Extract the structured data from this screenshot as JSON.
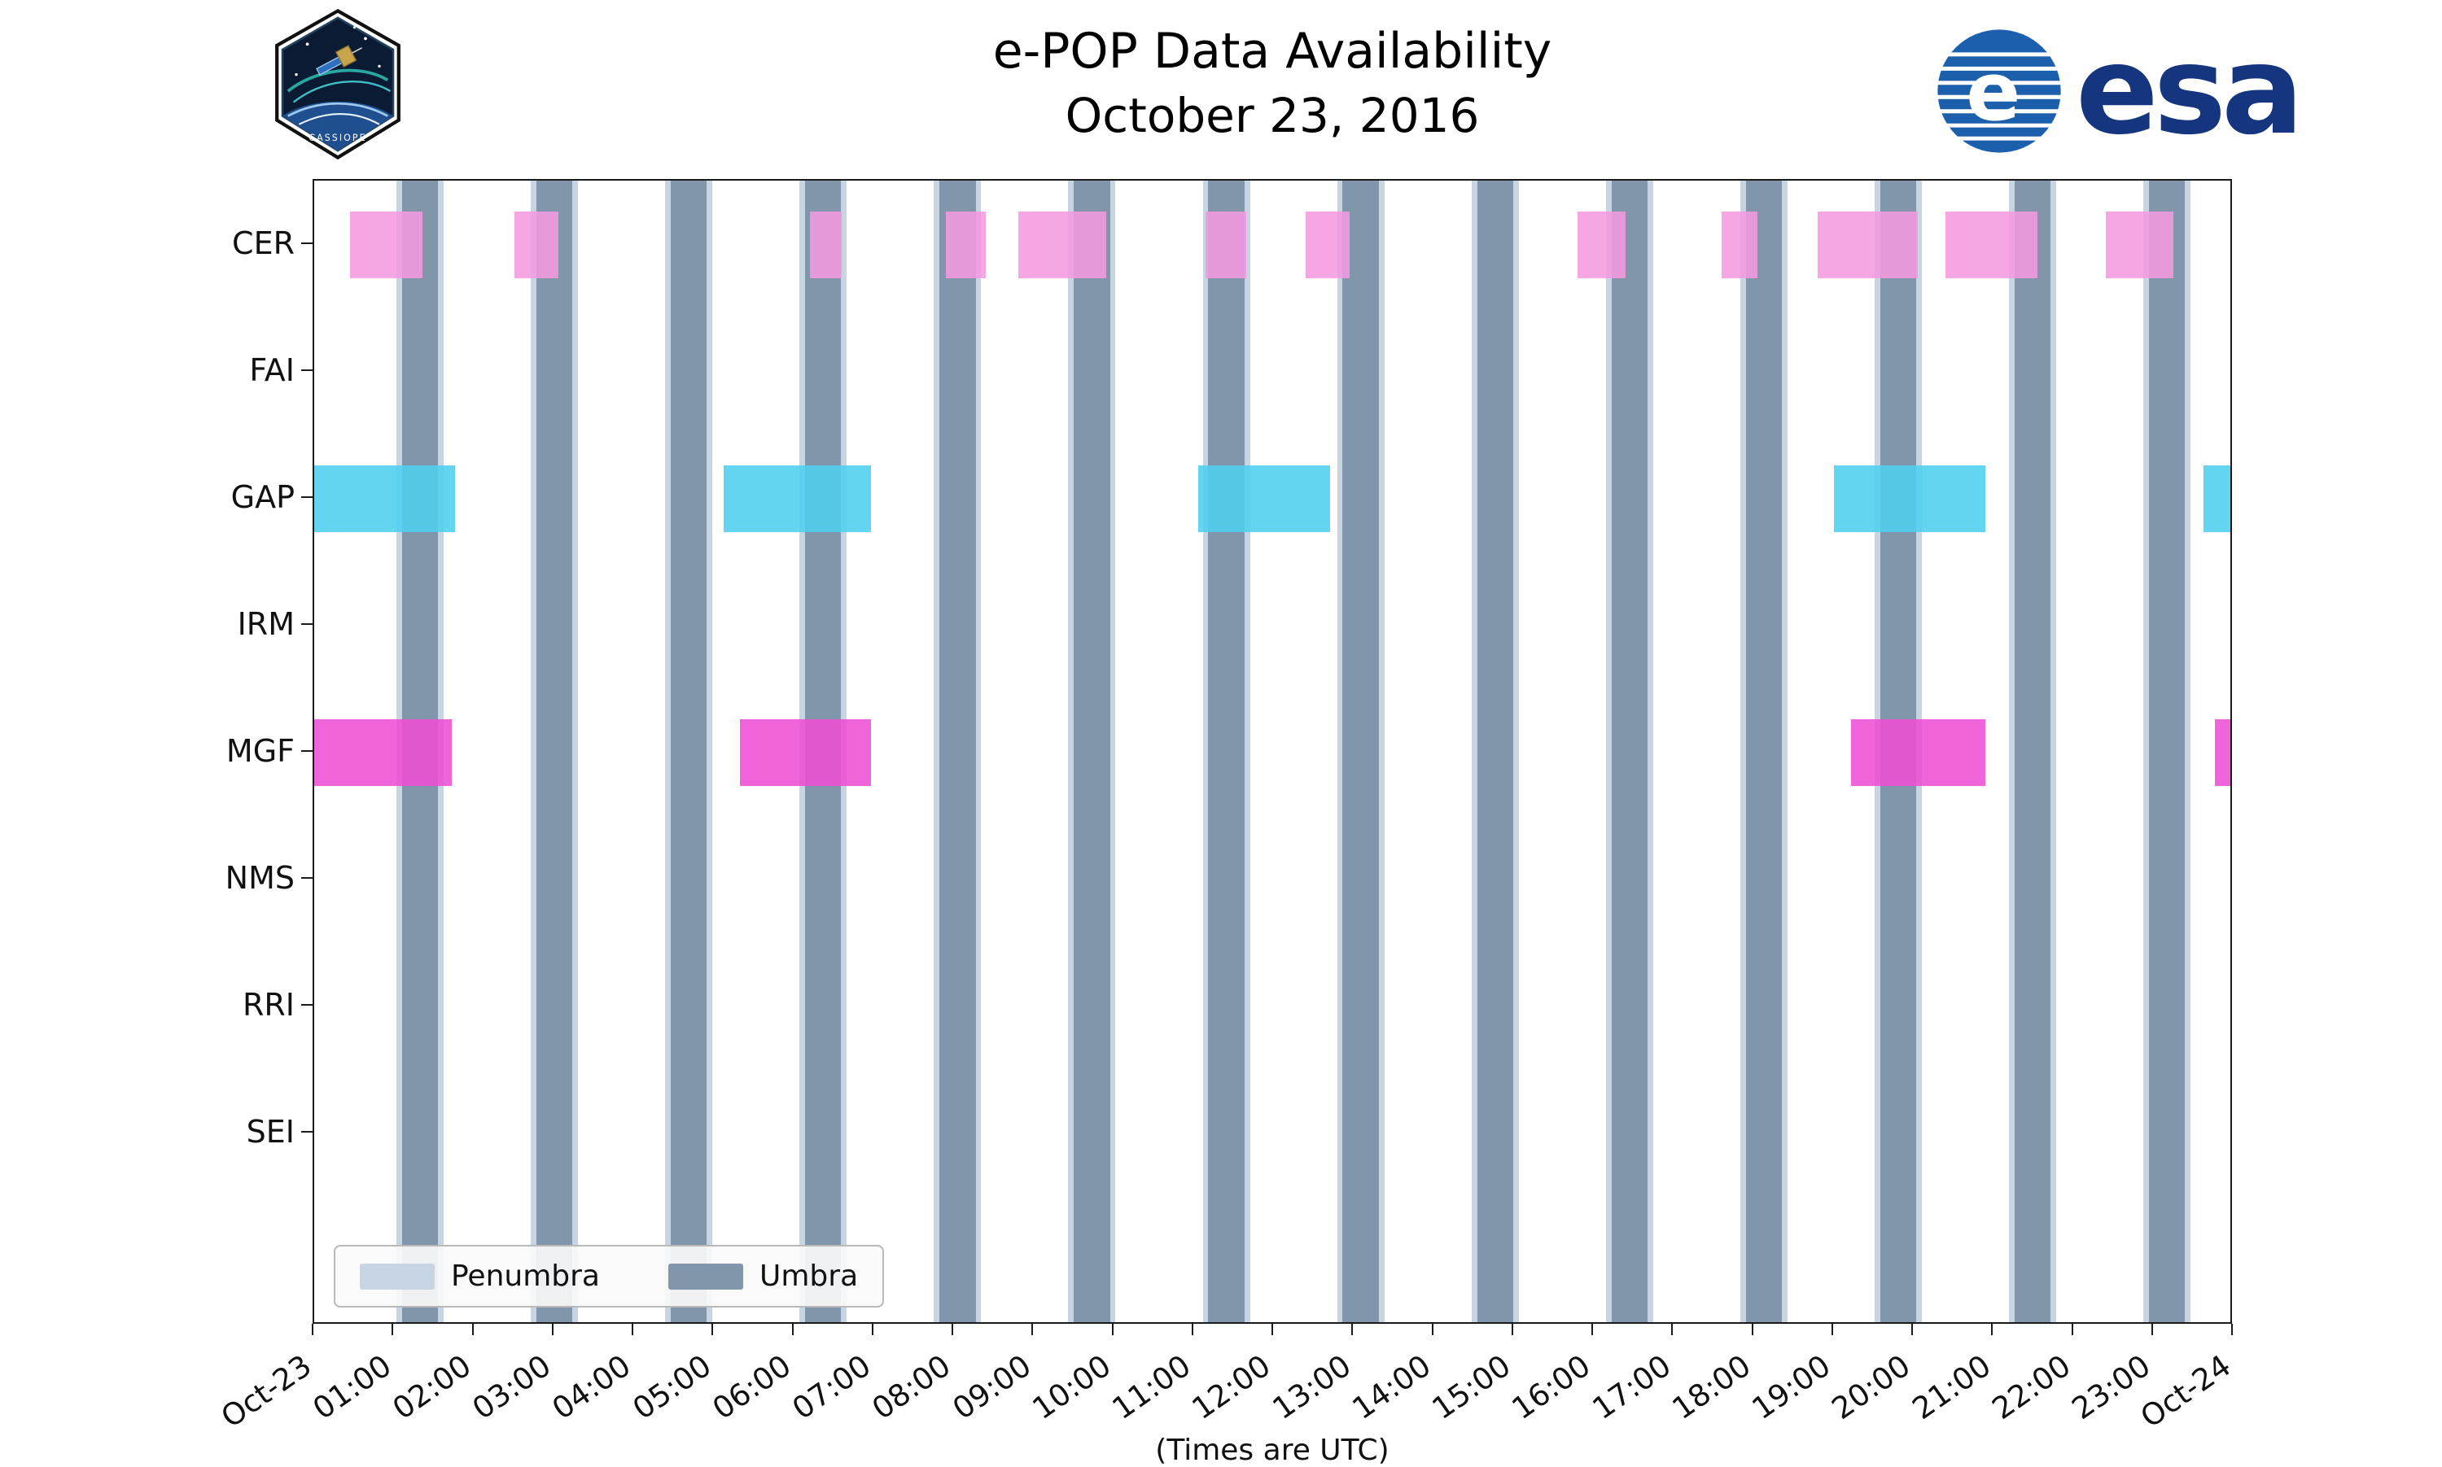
{
  "header": {
    "title": "e-POP Data Availability",
    "subtitle": "October 23, 2016",
    "esa_wordmark": "esa",
    "patch_text": "CASSIOPE"
  },
  "chart_data": {
    "type": "timeline",
    "title": "e-POP Data Availability",
    "subtitle": "October 23, 2016",
    "xlabel": "(Times are UTC)",
    "x_range_hours": [
      0,
      24
    ],
    "x_tick_hours": [
      0,
      1,
      2,
      3,
      4,
      5,
      6,
      7,
      8,
      9,
      10,
      11,
      12,
      13,
      14,
      15,
      16,
      17,
      18,
      19,
      20,
      21,
      22,
      23,
      24
    ],
    "x_ticks": [
      "Oct-23",
      "01:00",
      "02:00",
      "03:00",
      "04:00",
      "05:00",
      "06:00",
      "07:00",
      "08:00",
      "09:00",
      "10:00",
      "11:00",
      "12:00",
      "13:00",
      "14:00",
      "15:00",
      "16:00",
      "17:00",
      "18:00",
      "19:00",
      "20:00",
      "21:00",
      "22:00",
      "23:00",
      "Oct-24"
    ],
    "rows": [
      "CER",
      "FAI",
      "GAP",
      "IRM",
      "MGF",
      "NMS",
      "RRI",
      "SEI"
    ],
    "series": [
      {
        "row": "CER",
        "color": "#F49ADF",
        "intervals": [
          [
            0.45,
            1.35
          ],
          [
            2.5,
            3.05
          ],
          [
            6.2,
            6.6
          ],
          [
            7.9,
            8.4
          ],
          [
            8.8,
            9.9
          ],
          [
            11.15,
            11.65
          ],
          [
            12.4,
            12.95
          ],
          [
            15.8,
            16.4
          ],
          [
            17.6,
            18.05
          ],
          [
            18.8,
            20.05
          ],
          [
            20.4,
            21.55
          ],
          [
            22.4,
            23.25
          ]
        ]
      },
      {
        "row": "GAP",
        "color": "#4FCFEF",
        "intervals": [
          [
            0.0,
            1.76
          ],
          [
            5.12,
            6.96
          ],
          [
            11.05,
            12.7
          ],
          [
            19.0,
            20.9
          ],
          [
            23.62,
            24.0
          ]
        ]
      },
      {
        "row": "MGF",
        "color": "#ED4FD3",
        "intervals": [
          [
            0.0,
            1.72
          ],
          [
            5.32,
            6.96
          ],
          [
            19.22,
            20.9
          ],
          [
            23.77,
            24.0
          ]
        ]
      }
    ],
    "shading": {
      "umbra": {
        "label": "Umbra",
        "color": "#8296AB",
        "intervals": [
          [
            1.1,
            1.55
          ],
          [
            2.78,
            3.23
          ],
          [
            4.46,
            4.91
          ],
          [
            6.14,
            6.59
          ],
          [
            7.82,
            8.27
          ],
          [
            9.5,
            9.95
          ],
          [
            11.18,
            11.63
          ],
          [
            12.86,
            13.31
          ],
          [
            14.54,
            14.99
          ],
          [
            16.22,
            16.67
          ],
          [
            17.9,
            18.35
          ],
          [
            19.58,
            20.03
          ],
          [
            21.26,
            21.71
          ],
          [
            22.94,
            23.39
          ]
        ]
      },
      "penumbra": {
        "label": "Penumbra",
        "color": "#C7D5E3",
        "width_hours": 0.07
      }
    },
    "legend": [
      {
        "label": "Penumbra",
        "color": "#C7D5E3"
      },
      {
        "label": "Umbra",
        "color": "#8296AB"
      }
    ],
    "legend_position": "lower left",
    "grid": false
  }
}
